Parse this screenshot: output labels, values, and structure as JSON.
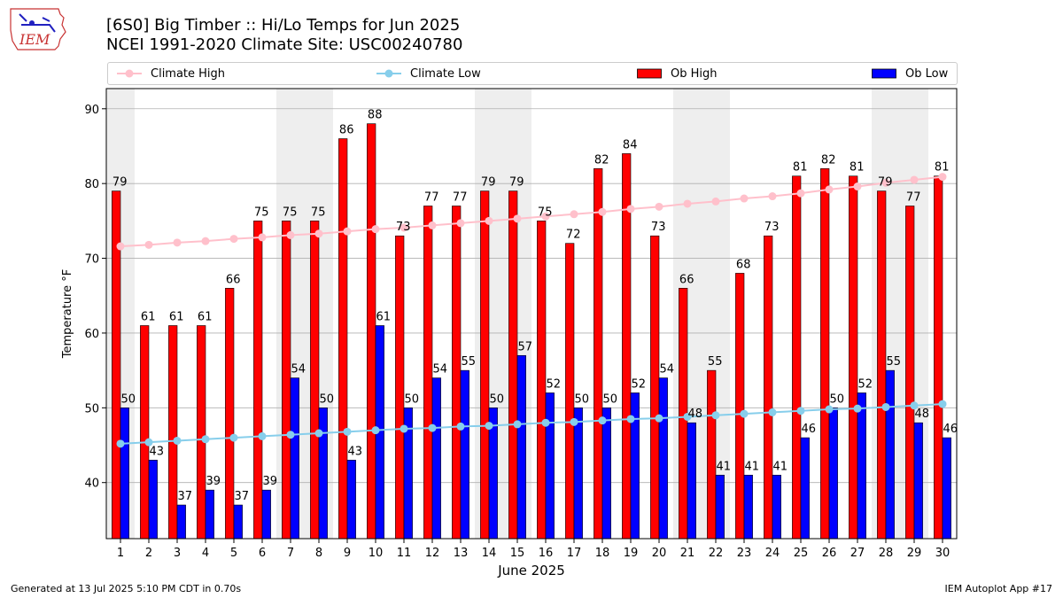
{
  "logo": {
    "text": "IEM"
  },
  "title": {
    "line1": "[6S0] Big Timber :: Hi/Lo Temps for Jun 2025",
    "line2": "NCEI 1991-2020 Climate Site: USC00240780"
  },
  "footer": {
    "left": "Generated at 13 Jul 2025 5:10 PM CDT in 0.70s",
    "right": "IEM Autoplot App #17"
  },
  "colors": {
    "ob_high": "#ff0000",
    "ob_low": "#0000ff",
    "climate_high": "#ffc0cb",
    "climate_low": "#87ceeb",
    "weekend_band": "#eeeeee",
    "grid": "#b0b0b0"
  },
  "chart_data": {
    "type": "bar",
    "title": "[6S0] Big Timber :: Hi/Lo Temps for Jun 2025",
    "xlabel": "June 2025",
    "ylabel": "Temperature °F",
    "ylim": [
      32.5,
      92.7
    ],
    "yticks": [
      40,
      50,
      60,
      70,
      80,
      90
    ],
    "grid": true,
    "legend_position": "top",
    "categories": [
      "1",
      "2",
      "3",
      "4",
      "5",
      "6",
      "7",
      "8",
      "9",
      "10",
      "11",
      "12",
      "13",
      "14",
      "15",
      "16",
      "17",
      "18",
      "19",
      "20",
      "21",
      "22",
      "23",
      "24",
      "25",
      "26",
      "27",
      "28",
      "29",
      "30"
    ],
    "weekend_spans": [
      [
        1,
        1
      ],
      [
        7,
        8
      ],
      [
        14,
        15
      ],
      [
        21,
        22
      ],
      [
        28,
        29
      ]
    ],
    "series": [
      {
        "name": "Ob High",
        "kind": "bar",
        "values": [
          79,
          61,
          61,
          61,
          66,
          75,
          75,
          75,
          86,
          88,
          73,
          77,
          77,
          79,
          79,
          75,
          72,
          82,
          84,
          73,
          66,
          55,
          68,
          73,
          81,
          82,
          81,
          79,
          77,
          81
        ]
      },
      {
        "name": "Ob Low",
        "kind": "bar",
        "values": [
          50,
          43,
          37,
          39,
          37,
          39,
          54,
          50,
          43,
          61,
          50,
          54,
          55,
          50,
          57,
          52,
          50,
          50,
          52,
          54,
          48,
          41,
          41,
          41,
          46,
          50,
          52,
          55,
          48,
          46
        ]
      },
      {
        "name": "Climate High",
        "kind": "line",
        "values": [
          71.6,
          71.8,
          72.1,
          72.3,
          72.6,
          72.8,
          73.1,
          73.3,
          73.6,
          73.9,
          74.1,
          74.4,
          74.7,
          75.0,
          75.3,
          75.6,
          75.9,
          76.2,
          76.6,
          76.9,
          77.3,
          77.6,
          78.0,
          78.3,
          78.7,
          79.2,
          79.6,
          80.1,
          80.5,
          80.9
        ]
      },
      {
        "name": "Climate Low",
        "kind": "line",
        "values": [
          45.2,
          45.4,
          45.6,
          45.8,
          46.0,
          46.2,
          46.4,
          46.6,
          46.8,
          47.0,
          47.2,
          47.3,
          47.5,
          47.6,
          47.8,
          48.0,
          48.1,
          48.3,
          48.5,
          48.6,
          48.8,
          49.0,
          49.2,
          49.4,
          49.6,
          49.8,
          49.9,
          50.1,
          50.3,
          50.5
        ]
      }
    ]
  }
}
